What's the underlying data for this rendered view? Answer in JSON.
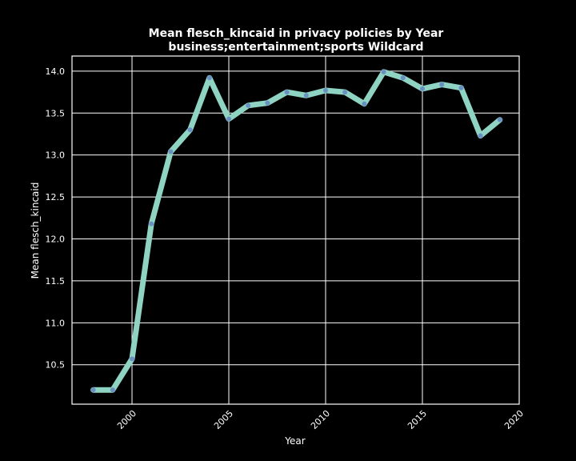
{
  "chart_data": {
    "type": "line",
    "title": "Mean flesch_kincaid in privacy policies by Year",
    "subtitle": "business;entertainment;sports Wildcard",
    "xlabel": "Year",
    "ylabel": "Mean flesch_kincaid",
    "xlim": [
      1996.9,
      2020
    ],
    "ylim": [
      10.03,
      14.18
    ],
    "x_ticks": [
      2000,
      2005,
      2010,
      2015,
      2020
    ],
    "y_ticks": [
      10.5,
      11.0,
      11.5,
      12.0,
      12.5,
      13.0,
      13.5,
      14.0
    ],
    "grid": true,
    "series": [
      {
        "x": [
          1998,
          1999,
          2000,
          2001,
          2002,
          2003,
          2004,
          2005,
          2006,
          2007,
          2008,
          2009,
          2010,
          2011,
          2012,
          2013,
          2014,
          2015,
          2016,
          2017,
          2018,
          2019
        ],
        "values": [
          10.2,
          10.2,
          10.57,
          12.18,
          13.04,
          13.3,
          13.92,
          13.43,
          13.59,
          13.62,
          13.75,
          13.71,
          13.77,
          13.75,
          13.61,
          13.99,
          13.92,
          13.79,
          13.84,
          13.8,
          13.23,
          13.42
        ]
      }
    ],
    "colors": {
      "line": "#8fd3c3",
      "marker": "#6a8fc2",
      "background": "#000000",
      "text": "#ffffff"
    }
  }
}
